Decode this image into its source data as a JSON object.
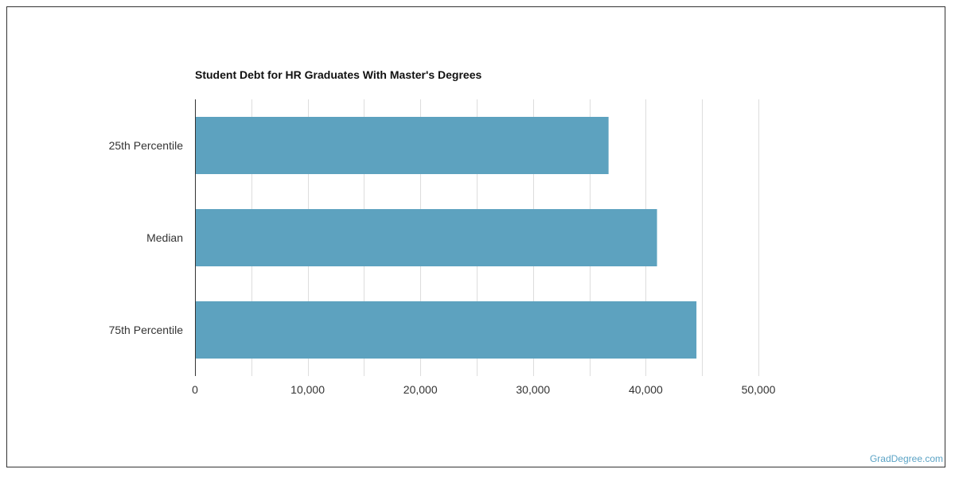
{
  "chart_data": {
    "type": "bar",
    "orientation": "horizontal",
    "title": "Student Debt for HR Graduates With Master's Degrees",
    "categories": [
      "25th Percentile",
      "Median",
      "75th Percentile"
    ],
    "values": [
      36700,
      41000,
      44500
    ],
    "xlabel": "",
    "ylabel": "",
    "xlim": [
      0,
      50000
    ],
    "x_ticks": [
      0,
      10000,
      20000,
      30000,
      40000,
      50000
    ],
    "x_tick_labels": [
      "0",
      "10,000",
      "20,000",
      "30,000",
      "40,000",
      "50,000"
    ],
    "grid": true,
    "bar_color": "#5da2bf"
  },
  "watermark": "GradDegree.com"
}
